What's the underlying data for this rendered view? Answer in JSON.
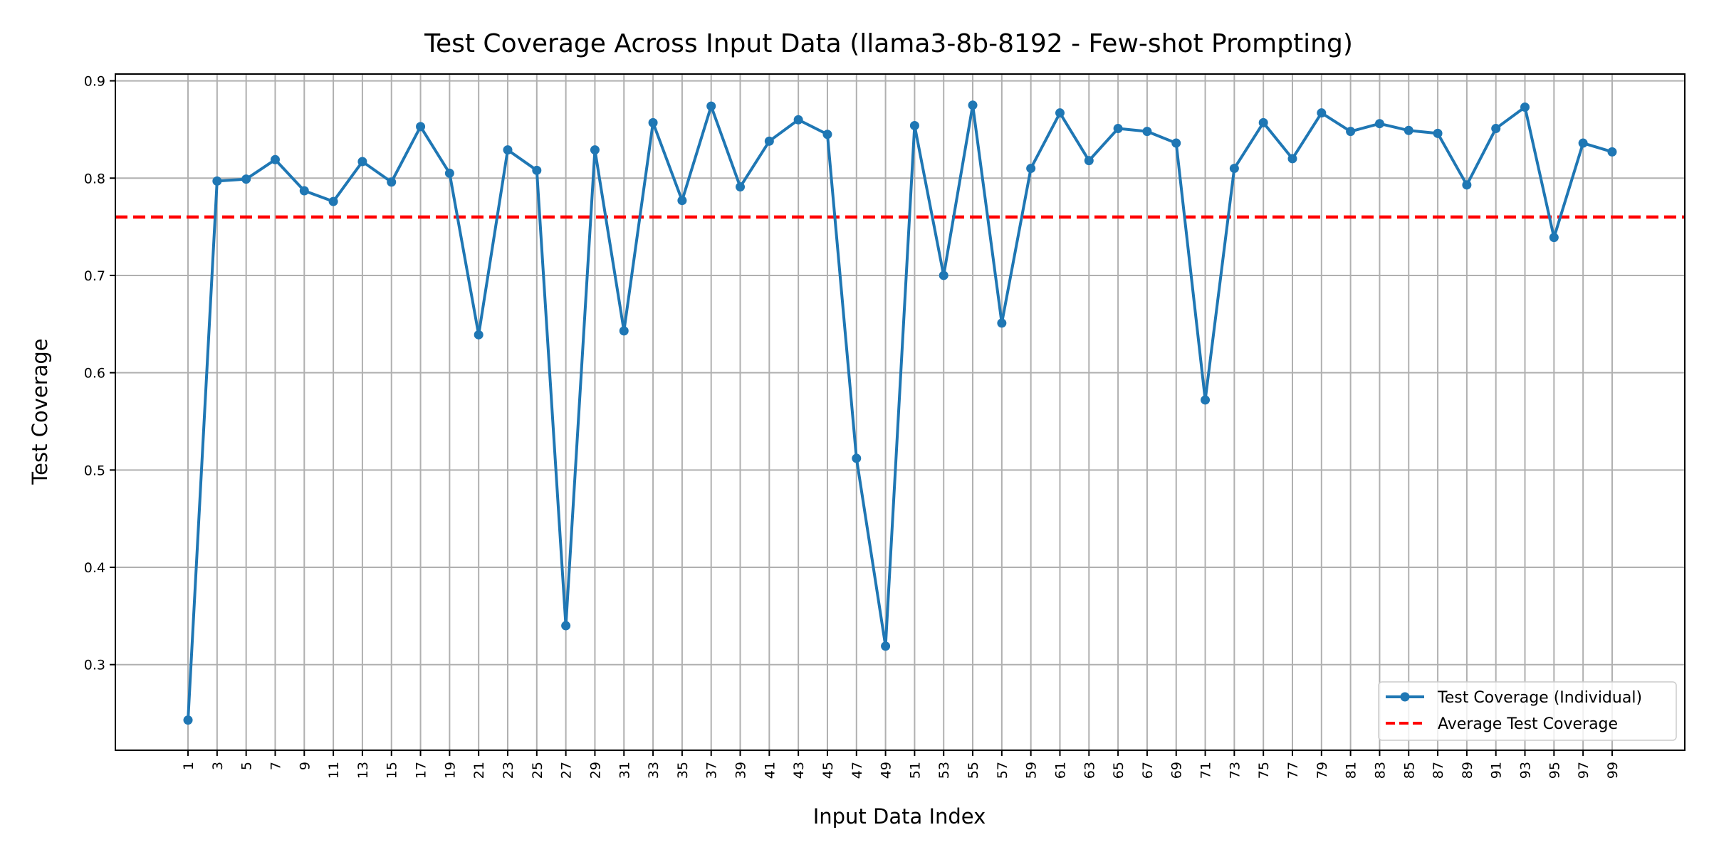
{
  "chart_data": {
    "type": "line",
    "title": "Test Coverage Across Input Data (llama3-8b-8192 - Few-shot Prompting)",
    "xlabel": "Input Data Index",
    "ylabel": "Test Coverage",
    "x": [
      1,
      3,
      5,
      7,
      9,
      11,
      13,
      15,
      17,
      19,
      21,
      23,
      25,
      27,
      29,
      31,
      33,
      35,
      37,
      39,
      41,
      43,
      45,
      47,
      49,
      51,
      53,
      55,
      57,
      59,
      61,
      63,
      65,
      67,
      69,
      71,
      73,
      75,
      77,
      79,
      81,
      83,
      85,
      87,
      89,
      91,
      93,
      95,
      97,
      99
    ],
    "xtick_labels": [
      "1",
      "3",
      "5",
      "7",
      "9",
      "11",
      "13",
      "15",
      "17",
      "19",
      "21",
      "23",
      "25",
      "27",
      "29",
      "31",
      "33",
      "35",
      "37",
      "39",
      "41",
      "43",
      "45",
      "47",
      "49",
      "51",
      "53",
      "55",
      "57",
      "59",
      "61",
      "63",
      "65",
      "67",
      "69",
      "71",
      "73",
      "75",
      "77",
      "79",
      "81",
      "83",
      "85",
      "87",
      "89",
      "91",
      "93",
      "95",
      "97",
      "99"
    ],
    "ytick_labels": [
      "0.3",
      "0.4",
      "0.5",
      "0.6",
      "0.7",
      "0.8",
      "0.9"
    ],
    "yticks": [
      0.3,
      0.4,
      0.5,
      0.6,
      0.7,
      0.8,
      0.9
    ],
    "xlim": [
      -4,
      104
    ],
    "ylim": [
      0.212,
      0.907
    ],
    "grid": true,
    "legend_position": "lower right",
    "series": [
      {
        "name": "Test Coverage (Individual)",
        "color": "#1f77b4",
        "marker": "circle",
        "values": [
          0.243,
          0.797,
          0.799,
          0.819,
          0.787,
          0.776,
          0.817,
          0.796,
          0.853,
          0.805,
          0.639,
          0.829,
          0.808,
          0.34,
          0.829,
          0.643,
          0.857,
          0.777,
          0.874,
          0.791,
          0.838,
          0.86,
          0.845,
          0.512,
          0.319,
          0.854,
          0.7,
          0.875,
          0.651,
          0.81,
          0.867,
          0.818,
          0.851,
          0.848,
          0.836,
          0.572,
          0.81,
          0.857,
          0.82,
          0.867,
          0.848,
          0.856,
          0.849,
          0.846,
          0.793,
          0.851,
          0.873,
          0.739,
          0.836,
          0.827
        ]
      },
      {
        "name": "Average Test Coverage",
        "color": "#ff0000",
        "style": "dashed",
        "value": 0.76
      }
    ]
  }
}
